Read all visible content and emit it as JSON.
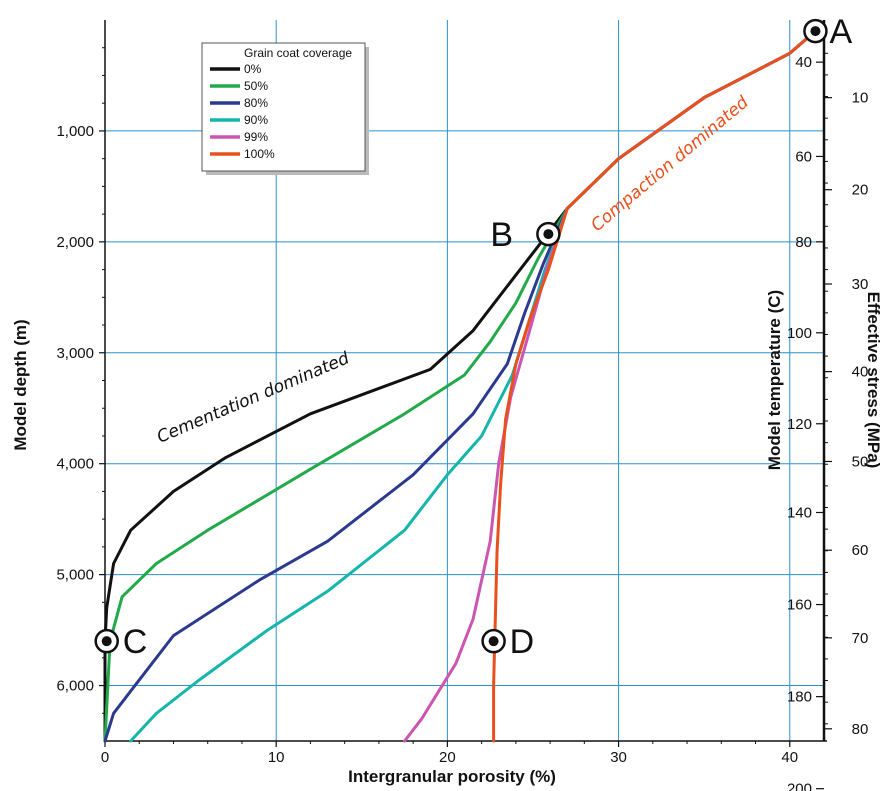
{
  "chart_data": {
    "type": "line",
    "title": "",
    "xlabel": "Intergranular porosity (%)",
    "ylabel": "Model depth (m)",
    "xlim": [
      0,
      42
    ],
    "ylim": [
      6500,
      0
    ],
    "grid": true,
    "x_ticks": [
      "0",
      "10",
      "20",
      "30",
      "40"
    ],
    "x_tick_values": [
      0,
      10,
      20,
      30,
      40
    ],
    "y_ticks": [
      "1,000",
      "2,000",
      "3,000",
      "4,000",
      "5,000",
      "6,000"
    ],
    "y_tick_values": [
      1000,
      2000,
      3000,
      4000,
      5000,
      6000
    ],
    "temperature_axis": {
      "label": "Model temperature (C)",
      "ticks": [
        "40",
        "60",
        "80",
        "100",
        "120",
        "140",
        "160",
        "180",
        "200"
      ],
      "depths": [
        380,
        1230,
        2000,
        2820,
        3640,
        4440,
        5270,
        6100,
        6930
      ]
    },
    "stress_axis": {
      "label": "Effective stress (MPa)",
      "ticks": [
        "10",
        "20",
        "30",
        "40",
        "50",
        "60",
        "70",
        "80"
      ],
      "depths": [
        700,
        1530,
        2380,
        3170,
        3980,
        4780,
        5570,
        6390
      ]
    },
    "legend": {
      "title": "Grain coat coverage",
      "position": "top-left"
    },
    "series": [
      {
        "name": "0%",
        "color": "#111111",
        "points": [
          [
            41.5,
            100
          ],
          [
            40,
            300
          ],
          [
            35,
            700
          ],
          [
            30,
            1250
          ],
          [
            27,
            1700
          ],
          [
            25,
            2100
          ],
          [
            23,
            2500
          ],
          [
            21.5,
            2800
          ],
          [
            19,
            3150
          ],
          [
            12,
            3550
          ],
          [
            7,
            3950
          ],
          [
            4,
            4250
          ],
          [
            1.5,
            4600
          ],
          [
            0.5,
            4900
          ],
          [
            0.1,
            5300
          ],
          [
            0,
            5600
          ],
          [
            0,
            6500
          ]
        ]
      },
      {
        "name": "50%",
        "color": "#22a94a",
        "points": [
          [
            41.5,
            100
          ],
          [
            40,
            300
          ],
          [
            35,
            700
          ],
          [
            30,
            1250
          ],
          [
            27,
            1700
          ],
          [
            25.3,
            2150
          ],
          [
            24,
            2550
          ],
          [
            22.5,
            2900
          ],
          [
            21,
            3200
          ],
          [
            17.5,
            3550
          ],
          [
            12,
            4050
          ],
          [
            6,
            4600
          ],
          [
            3,
            4900
          ],
          [
            1,
            5200
          ],
          [
            0.3,
            5600
          ],
          [
            0,
            6500
          ]
        ]
      },
      {
        "name": "80%",
        "color": "#2b3a8f",
        "points": [
          [
            41.5,
            100
          ],
          [
            40,
            300
          ],
          [
            35,
            700
          ],
          [
            30,
            1250
          ],
          [
            27,
            1700
          ],
          [
            25.6,
            2200
          ],
          [
            24.5,
            2650
          ],
          [
            23.5,
            3100
          ],
          [
            21.5,
            3550
          ],
          [
            18,
            4100
          ],
          [
            13,
            4700
          ],
          [
            9,
            5050
          ],
          [
            4,
            5550
          ],
          [
            1.5,
            6050
          ],
          [
            0.5,
            6250
          ],
          [
            0,
            6500
          ]
        ]
      },
      {
        "name": "90%",
        "color": "#15b5ac",
        "points": [
          [
            41.5,
            100
          ],
          [
            40,
            300
          ],
          [
            35,
            700
          ],
          [
            30,
            1250
          ],
          [
            27,
            1700
          ],
          [
            25.7,
            2250
          ],
          [
            24.8,
            2700
          ],
          [
            23.8,
            3200
          ],
          [
            22,
            3750
          ],
          [
            20,
            4100
          ],
          [
            17.5,
            4600
          ],
          [
            13,
            5150
          ],
          [
            9.5,
            5500
          ],
          [
            5.5,
            5950
          ],
          [
            3,
            6250
          ],
          [
            1.5,
            6500
          ]
        ]
      },
      {
        "name": "99%",
        "color": "#cc55b2",
        "points": [
          [
            41.5,
            100
          ],
          [
            40,
            300
          ],
          [
            35,
            700
          ],
          [
            30,
            1250
          ],
          [
            27,
            1700
          ],
          [
            25.8,
            2250
          ],
          [
            24.8,
            2800
          ],
          [
            23.7,
            3400
          ],
          [
            23,
            4000
          ],
          [
            22.5,
            4700
          ],
          [
            21.5,
            5400
          ],
          [
            20.5,
            5800
          ],
          [
            19.5,
            6050
          ],
          [
            18.5,
            6300
          ],
          [
            17.5,
            6500
          ]
        ]
      },
      {
        "name": "100%",
        "color": "#e8501c",
        "points": [
          [
            41.5,
            100
          ],
          [
            40,
            300
          ],
          [
            35,
            700
          ],
          [
            30,
            1250
          ],
          [
            27,
            1700
          ],
          [
            25.9,
            2250
          ],
          [
            24.8,
            2700
          ],
          [
            24,
            3100
          ],
          [
            23.4,
            3600
          ],
          [
            23.1,
            4200
          ],
          [
            22.9,
            4800
          ],
          [
            22.8,
            5400
          ],
          [
            22.7,
            6000
          ],
          [
            22.7,
            6500
          ]
        ]
      }
    ],
    "markers": [
      {
        "label": "A",
        "x": 41.5,
        "y": 100
      },
      {
        "label": "B",
        "x": 25.9,
        "y": 1930
      },
      {
        "label": "C",
        "x": 0.1,
        "y": 5600
      },
      {
        "label": "D",
        "x": 22.7,
        "y": 5600
      }
    ],
    "annotations": [
      {
        "text": "Cementation dominated",
        "color": "#111111"
      },
      {
        "text": "Compaction dominated",
        "color": "#e8501c"
      }
    ]
  }
}
